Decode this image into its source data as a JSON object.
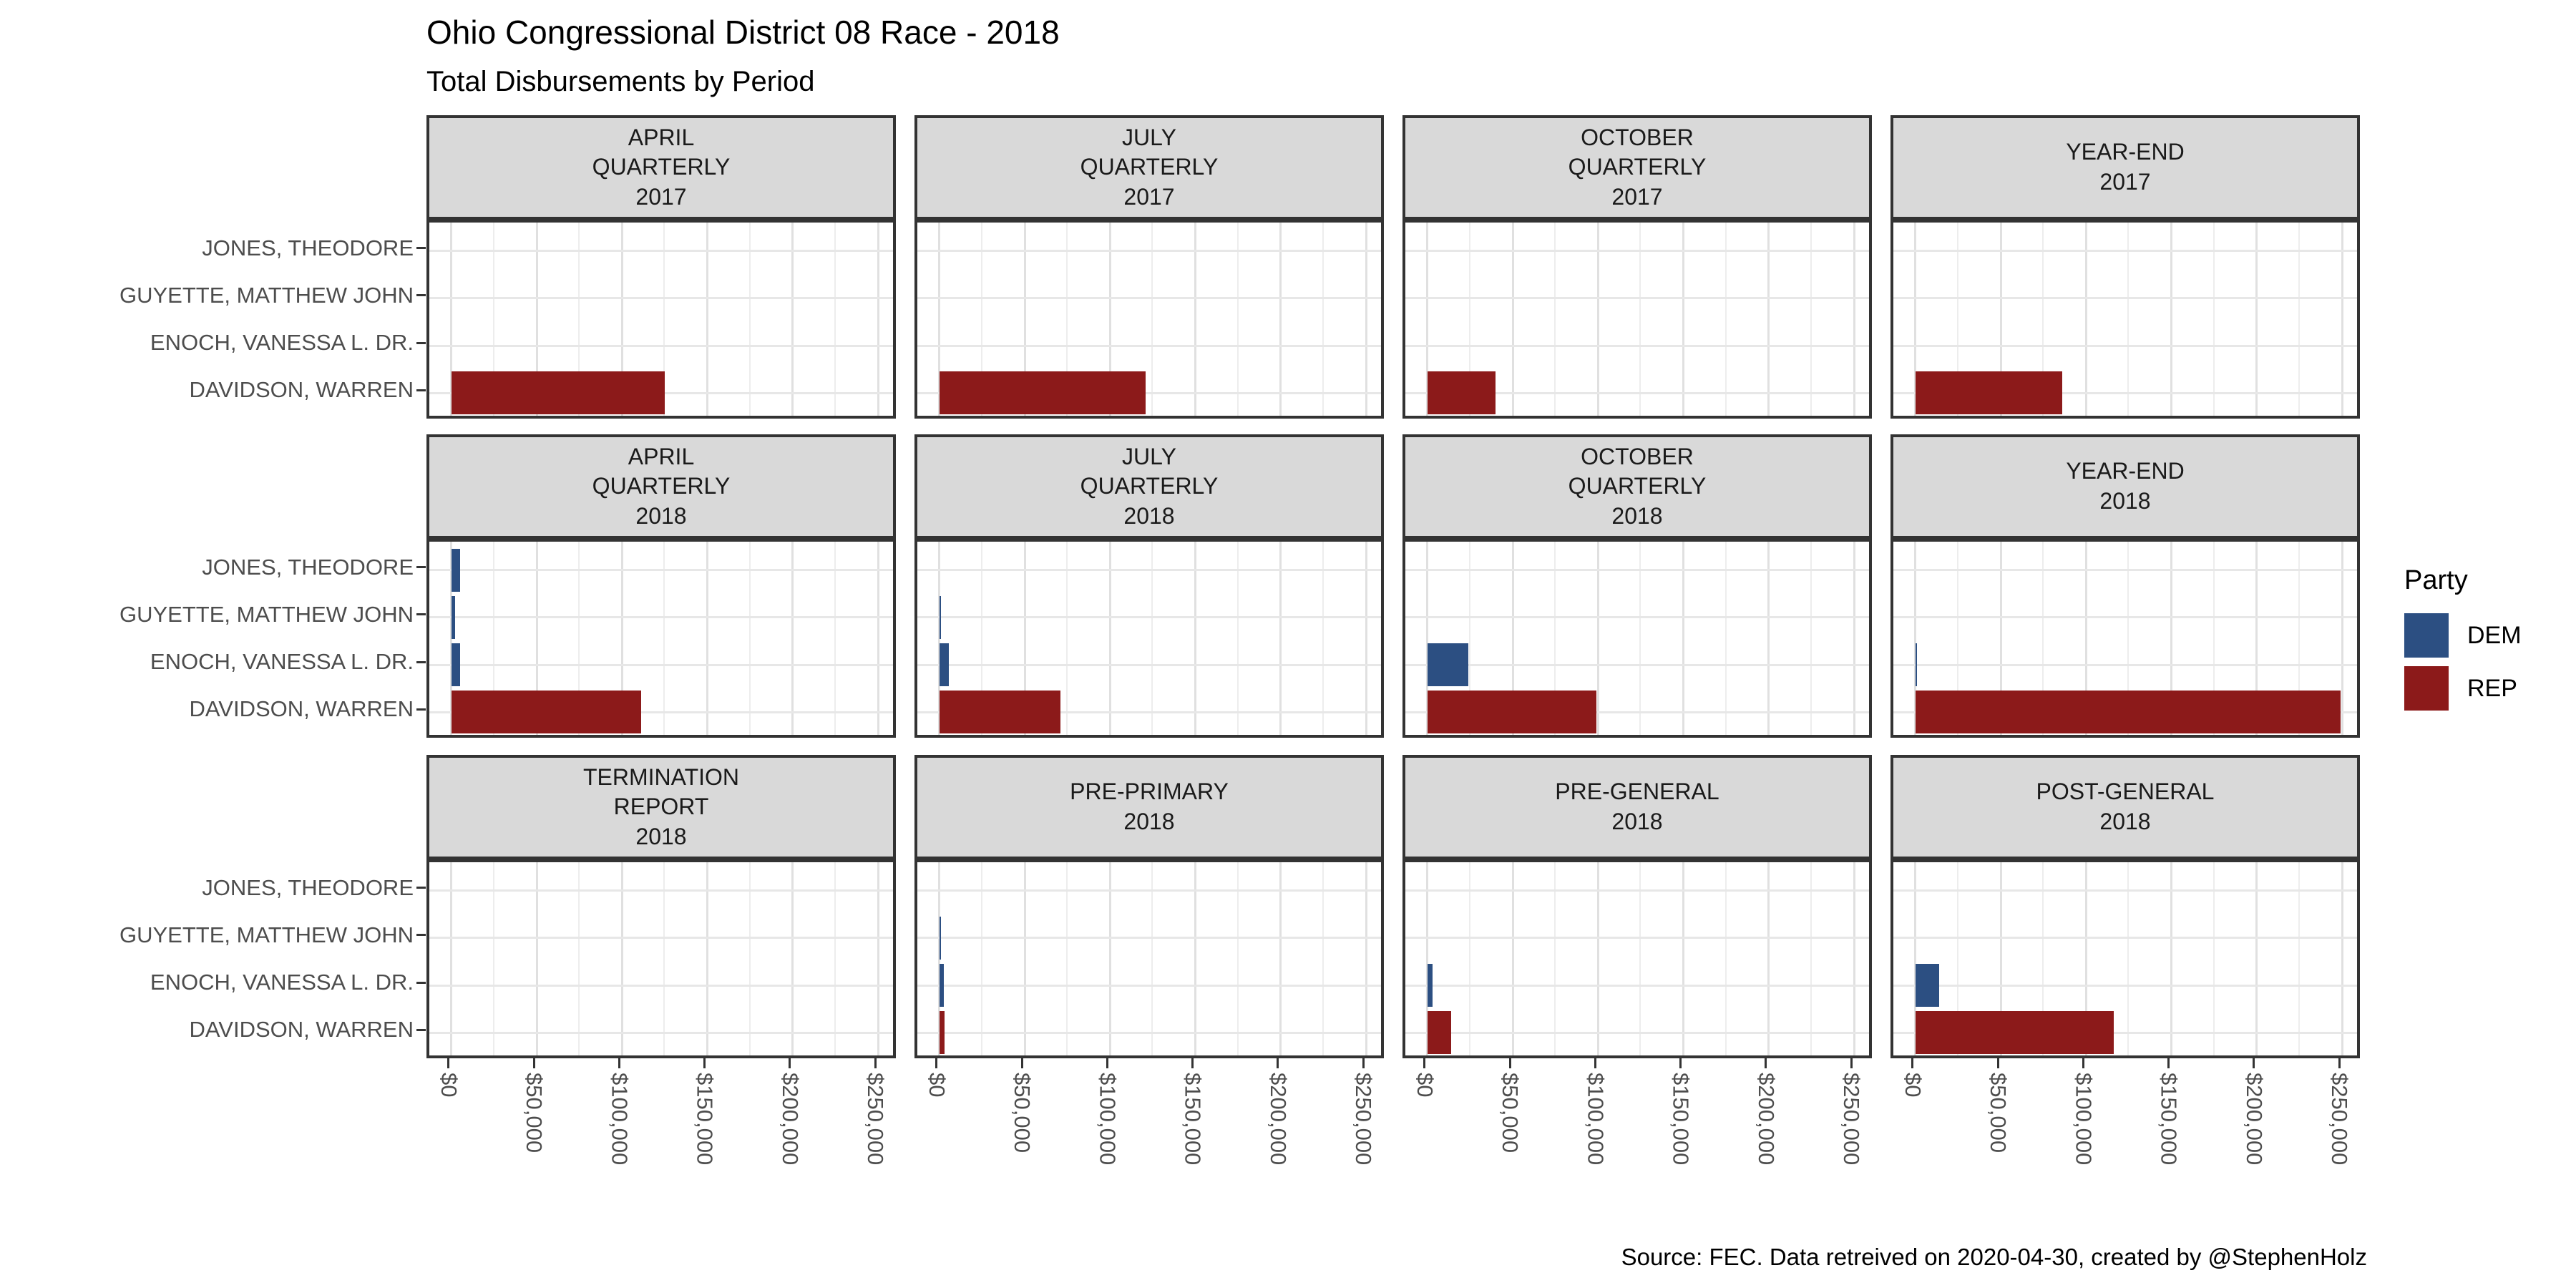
{
  "header": {
    "title": "Ohio Congressional District 08 Race - 2018",
    "subtitle": "Total Disbursements by Period"
  },
  "legend": {
    "title": "Party",
    "items": [
      {
        "label": "DEM",
        "color": "#2c4f82"
      },
      {
        "label": "REP",
        "color": "#8c1a1a"
      }
    ]
  },
  "footer": {
    "caption": "Source: FEC. Data retreived on 2020-04-30, created by @StephenHolz"
  },
  "chart_data": {
    "type": "bar",
    "orientation": "horizontal",
    "title": "Ohio Congressional District 08 Race - 2018",
    "subtitle": "Total Disbursements by Period",
    "candidates": [
      "JONES, THEODORE",
      "GUYETTE, MATTHEW JOHN",
      "ENOCH, VANESSA L. DR.",
      "DAVIDSON, WARREN"
    ],
    "candidate_parties": [
      "DEM",
      "DEM",
      "DEM",
      "REP"
    ],
    "party_colors": {
      "DEM": "#2c4f82",
      "REP": "#8c1a1a"
    },
    "x_ticks": [
      "$0",
      "$50,000",
      "$100,000",
      "$150,000",
      "$200,000",
      "$250,000"
    ],
    "x_tick_values": [
      0,
      50000,
      100000,
      150000,
      200000,
      250000
    ],
    "xlim": [
      -13000,
      262000
    ],
    "grid": "on",
    "legend_position": "right",
    "facets": [
      {
        "label": "APRIL\nQUARTERLY\n2017",
        "values": [
          0,
          0,
          0,
          125000
        ]
      },
      {
        "label": "JULY\nQUARTERLY\n2017",
        "values": [
          0,
          0,
          0,
          121000
        ]
      },
      {
        "label": "OCTOBER\nQUARTERLY\n2017",
        "values": [
          0,
          0,
          0,
          40000
        ]
      },
      {
        "label": "YEAR-END\n2017",
        "values": [
          0,
          0,
          0,
          86000
        ]
      },
      {
        "label": "APRIL\nQUARTERLY\n2018",
        "values": [
          5000,
          2000,
          5000,
          111000
        ]
      },
      {
        "label": "JULY\nQUARTERLY\n2018",
        "values": [
          0,
          1000,
          5500,
          71000
        ]
      },
      {
        "label": "OCTOBER\nQUARTERLY\n2018",
        "values": [
          0,
          0,
          24000,
          99000
        ]
      },
      {
        "label": "YEAR-END\n2018",
        "values": [
          0,
          0,
          500,
          249000
        ]
      },
      {
        "label": "TERMINATION\nREPORT\n2018",
        "values": [
          0,
          0,
          0,
          0
        ]
      },
      {
        "label": "PRE-PRIMARY\n2018",
        "values": [
          0,
          500,
          2700,
          3200
        ]
      },
      {
        "label": "PRE-GENERAL\n2018",
        "values": [
          0,
          0,
          2900,
          14000
        ]
      },
      {
        "label": "POST-GENERAL\n2018",
        "values": [
          0,
          0,
          13700,
          116000
        ]
      }
    ]
  }
}
